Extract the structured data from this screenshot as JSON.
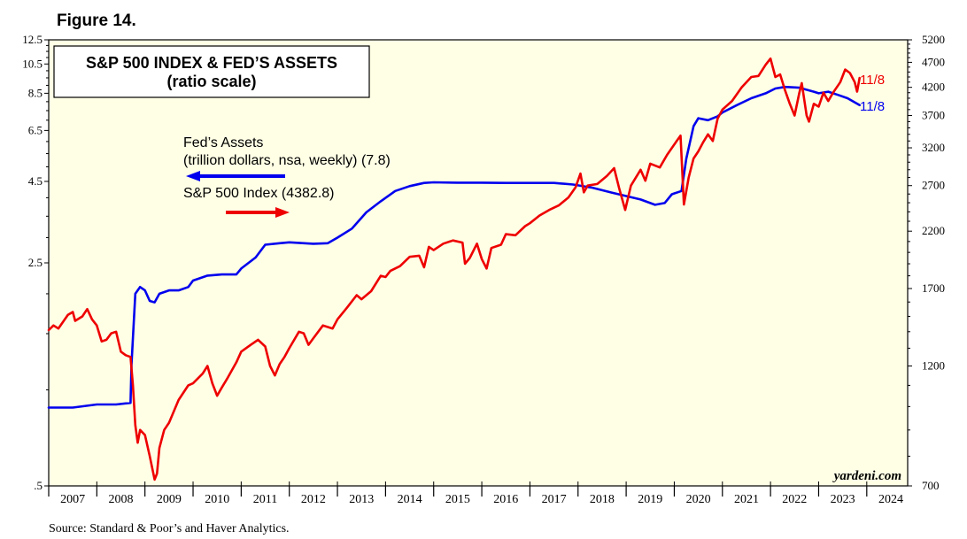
{
  "figure_label": "Figure 14.",
  "source": "Source: Standard & Poor’s and Haver Analytics.",
  "watermark": "yardeni.com",
  "colors": {
    "plot_bg": "#ffffe6",
    "fed": "#0000ee",
    "sp500": "#ee0000",
    "axis": "#000000"
  },
  "chart_data": {
    "type": "line",
    "title": "S&P 500 INDEX & FED’S ASSETS",
    "subtitle": "(ratio scale)",
    "x_ticks": [
      "2007",
      "2008",
      "2009",
      "2010",
      "2011",
      "2012",
      "2013",
      "2014",
      "2015",
      "2016",
      "2017",
      "2018",
      "2019",
      "2020",
      "2021",
      "2022",
      "2023",
      "2024"
    ],
    "xlim": [
      2007.0,
      2024.85
    ],
    "left_axis": {
      "scale": "log",
      "ylim": [
        0.5,
        12.5
      ],
      "tick_values": [
        0.5,
        2.5,
        4.5,
        6.5,
        8.5,
        10.5,
        12.5
      ],
      "tick_labels": [
        ".5",
        "2.5",
        "4.5",
        "6.5",
        "8.5",
        "10.5",
        "12.5"
      ]
    },
    "right_axis": {
      "scale": "log",
      "ylim": [
        700,
        5200
      ],
      "tick_values": [
        700,
        1200,
        1700,
        2200,
        2700,
        3200,
        3700,
        4200,
        4700,
        5200
      ],
      "tick_labels": [
        "700",
        "1200",
        "1700",
        "2200",
        "2700",
        "3200",
        "3700",
        "4200",
        "4700",
        "5200"
      ]
    },
    "series": [
      {
        "name": "Fed’s Assets",
        "legend_line1": "Fed’s Assets",
        "legend_line2": "(trillion dollars, nsa, weekly) (7.8)",
        "axis": "left",
        "end_label": "11/8",
        "points": [
          [
            2007.0,
            0.88
          ],
          [
            2007.5,
            0.88
          ],
          [
            2008.0,
            0.9
          ],
          [
            2008.4,
            0.9
          ],
          [
            2008.7,
            0.91
          ],
          [
            2008.72,
            1.2
          ],
          [
            2008.8,
            2.0
          ],
          [
            2008.9,
            2.1
          ],
          [
            2009.0,
            2.05
          ],
          [
            2009.1,
            1.9
          ],
          [
            2009.2,
            1.88
          ],
          [
            2009.3,
            2.0
          ],
          [
            2009.5,
            2.05
          ],
          [
            2009.7,
            2.05
          ],
          [
            2009.9,
            2.1
          ],
          [
            2010.0,
            2.2
          ],
          [
            2010.3,
            2.28
          ],
          [
            2010.6,
            2.3
          ],
          [
            2010.9,
            2.3
          ],
          [
            2011.0,
            2.4
          ],
          [
            2011.3,
            2.6
          ],
          [
            2011.5,
            2.85
          ],
          [
            2011.8,
            2.88
          ],
          [
            2012.0,
            2.9
          ],
          [
            2012.5,
            2.87
          ],
          [
            2012.8,
            2.88
          ],
          [
            2013.0,
            3.0
          ],
          [
            2013.3,
            3.2
          ],
          [
            2013.6,
            3.6
          ],
          [
            2013.9,
            3.9
          ],
          [
            2014.2,
            4.2
          ],
          [
            2014.5,
            4.35
          ],
          [
            2014.8,
            4.45
          ],
          [
            2015.0,
            4.47
          ],
          [
            2015.5,
            4.46
          ],
          [
            2016.0,
            4.46
          ],
          [
            2016.5,
            4.45
          ],
          [
            2017.0,
            4.45
          ],
          [
            2017.5,
            4.45
          ],
          [
            2017.9,
            4.4
          ],
          [
            2018.3,
            4.3
          ],
          [
            2018.7,
            4.15
          ],
          [
            2019.0,
            4.05
          ],
          [
            2019.3,
            3.95
          ],
          [
            2019.6,
            3.8
          ],
          [
            2019.8,
            3.85
          ],
          [
            2019.95,
            4.1
          ],
          [
            2020.15,
            4.2
          ],
          [
            2020.25,
            5.3
          ],
          [
            2020.4,
            6.7
          ],
          [
            2020.5,
            7.1
          ],
          [
            2020.7,
            7.0
          ],
          [
            2020.9,
            7.2
          ],
          [
            2021.0,
            7.4
          ],
          [
            2021.3,
            7.8
          ],
          [
            2021.6,
            8.2
          ],
          [
            2021.9,
            8.5
          ],
          [
            2022.1,
            8.8
          ],
          [
            2022.3,
            8.9
          ],
          [
            2022.6,
            8.85
          ],
          [
            2022.9,
            8.6
          ],
          [
            2023.0,
            8.5
          ],
          [
            2023.2,
            8.6
          ],
          [
            2023.4,
            8.4
          ],
          [
            2023.6,
            8.2
          ],
          [
            2023.85,
            7.8
          ]
        ]
      },
      {
        "name": "S&P 500 Index",
        "legend_line1": "S&P 500 Index (4382.8)",
        "axis": "right",
        "end_label": "11/8",
        "points": [
          [
            2007.0,
            1410
          ],
          [
            2007.1,
            1440
          ],
          [
            2007.2,
            1420
          ],
          [
            2007.4,
            1510
          ],
          [
            2007.5,
            1530
          ],
          [
            2007.55,
            1470
          ],
          [
            2007.7,
            1500
          ],
          [
            2007.8,
            1550
          ],
          [
            2007.9,
            1480
          ],
          [
            2008.0,
            1440
          ],
          [
            2008.1,
            1340
          ],
          [
            2008.2,
            1350
          ],
          [
            2008.3,
            1390
          ],
          [
            2008.4,
            1400
          ],
          [
            2008.5,
            1280
          ],
          [
            2008.6,
            1260
          ],
          [
            2008.7,
            1250
          ],
          [
            2008.75,
            1100
          ],
          [
            2008.8,
            920
          ],
          [
            2008.85,
            850
          ],
          [
            2008.9,
            900
          ],
          [
            2009.0,
            880
          ],
          [
            2009.1,
            800
          ],
          [
            2009.2,
            720
          ],
          [
            2009.25,
            740
          ],
          [
            2009.3,
            830
          ],
          [
            2009.4,
            900
          ],
          [
            2009.5,
            930
          ],
          [
            2009.7,
            1030
          ],
          [
            2009.9,
            1100
          ],
          [
            2010.0,
            1110
          ],
          [
            2010.2,
            1160
          ],
          [
            2010.3,
            1200
          ],
          [
            2010.4,
            1110
          ],
          [
            2010.5,
            1050
          ],
          [
            2010.6,
            1090
          ],
          [
            2010.7,
            1130
          ],
          [
            2010.9,
            1220
          ],
          [
            2011.0,
            1280
          ],
          [
            2011.2,
            1320
          ],
          [
            2011.35,
            1350
          ],
          [
            2011.5,
            1310
          ],
          [
            2011.6,
            1200
          ],
          [
            2011.7,
            1150
          ],
          [
            2011.8,
            1210
          ],
          [
            2011.9,
            1250
          ],
          [
            2012.0,
            1300
          ],
          [
            2012.2,
            1400
          ],
          [
            2012.3,
            1390
          ],
          [
            2012.4,
            1320
          ],
          [
            2012.5,
            1360
          ],
          [
            2012.7,
            1440
          ],
          [
            2012.9,
            1420
          ],
          [
            2013.0,
            1480
          ],
          [
            2013.2,
            1560
          ],
          [
            2013.4,
            1650
          ],
          [
            2013.5,
            1620
          ],
          [
            2013.7,
            1680
          ],
          [
            2013.9,
            1800
          ],
          [
            2014.0,
            1790
          ],
          [
            2014.1,
            1840
          ],
          [
            2014.3,
            1880
          ],
          [
            2014.5,
            1960
          ],
          [
            2014.7,
            1970
          ],
          [
            2014.8,
            1870
          ],
          [
            2014.9,
            2050
          ],
          [
            2015.0,
            2020
          ],
          [
            2015.2,
            2080
          ],
          [
            2015.4,
            2110
          ],
          [
            2015.6,
            2090
          ],
          [
            2015.65,
            1900
          ],
          [
            2015.75,
            1950
          ],
          [
            2015.9,
            2080
          ],
          [
            2016.0,
            1940
          ],
          [
            2016.1,
            1860
          ],
          [
            2016.2,
            2040
          ],
          [
            2016.4,
            2070
          ],
          [
            2016.5,
            2170
          ],
          [
            2016.7,
            2160
          ],
          [
            2016.9,
            2250
          ],
          [
            2017.0,
            2280
          ],
          [
            2017.2,
            2360
          ],
          [
            2017.4,
            2420
          ],
          [
            2017.6,
            2470
          ],
          [
            2017.8,
            2560
          ],
          [
            2017.95,
            2680
          ],
          [
            2018.05,
            2850
          ],
          [
            2018.12,
            2620
          ],
          [
            2018.2,
            2700
          ],
          [
            2018.4,
            2720
          ],
          [
            2018.6,
            2820
          ],
          [
            2018.75,
            2920
          ],
          [
            2018.85,
            2680
          ],
          [
            2018.98,
            2420
          ],
          [
            2019.1,
            2700
          ],
          [
            2019.3,
            2900
          ],
          [
            2019.4,
            2760
          ],
          [
            2019.5,
            2980
          ],
          [
            2019.7,
            2930
          ],
          [
            2019.85,
            3100
          ],
          [
            2020.05,
            3300
          ],
          [
            2020.13,
            3380
          ],
          [
            2020.2,
            2480
          ],
          [
            2020.3,
            2800
          ],
          [
            2020.4,
            3050
          ],
          [
            2020.5,
            3150
          ],
          [
            2020.6,
            3280
          ],
          [
            2020.7,
            3400
          ],
          [
            2020.8,
            3300
          ],
          [
            2020.9,
            3650
          ],
          [
            2021.0,
            3800
          ],
          [
            2021.2,
            3950
          ],
          [
            2021.4,
            4200
          ],
          [
            2021.6,
            4400
          ],
          [
            2021.75,
            4420
          ],
          [
            2021.9,
            4650
          ],
          [
            2022.0,
            4780
          ],
          [
            2022.1,
            4400
          ],
          [
            2022.2,
            4450
          ],
          [
            2022.3,
            4150
          ],
          [
            2022.4,
            3900
          ],
          [
            2022.5,
            3700
          ],
          [
            2022.6,
            4100
          ],
          [
            2022.65,
            4280
          ],
          [
            2022.75,
            3700
          ],
          [
            2022.8,
            3600
          ],
          [
            2022.9,
            3900
          ],
          [
            2023.0,
            3850
          ],
          [
            2023.1,
            4100
          ],
          [
            2023.2,
            3950
          ],
          [
            2023.3,
            4100
          ],
          [
            2023.45,
            4300
          ],
          [
            2023.55,
            4550
          ],
          [
            2023.65,
            4480
          ],
          [
            2023.75,
            4300
          ],
          [
            2023.8,
            4120
          ],
          [
            2023.85,
            4380
          ]
        ]
      }
    ]
  }
}
